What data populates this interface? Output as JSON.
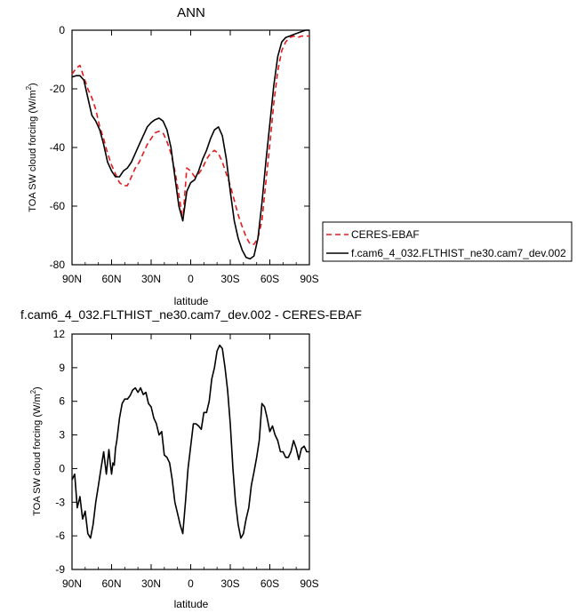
{
  "chart_data": [
    {
      "type": "line",
      "title": "ANN",
      "xlabel": "latitude",
      "ylabel": "TOA SW cloud forcing (W/m",
      "ylabel_sup": "2",
      "ylabel_close": ")",
      "xlim": [
        90,
        -90
      ],
      "ylim": [
        -80,
        0
      ],
      "xticks": [
        90,
        60,
        30,
        0,
        -30,
        -60,
        -90
      ],
      "xtick_labels": [
        "90N",
        "60N",
        "30N",
        "0",
        "30S",
        "60S",
        "90S"
      ],
      "yticks": [
        -80,
        -60,
        -40,
        -20,
        0
      ],
      "ytick_labels": [
        "-80",
        "-60",
        "-40",
        "-20",
        "0"
      ],
      "legend_position": "right",
      "series": [
        {
          "name": "CERES-EBAF",
          "color": "#e41a1c",
          "dash": "dashed",
          "x": [
            90,
            87,
            84,
            81,
            78,
            75,
            72,
            69,
            66,
            63,
            60,
            57,
            54,
            51,
            48,
            45,
            42,
            39,
            36,
            33,
            30,
            27,
            24,
            21,
            18,
            15,
            12,
            9,
            6,
            3,
            0,
            -3,
            -6,
            -9,
            -12,
            -15,
            -18,
            -21,
            -24,
            -27,
            -30,
            -33,
            -36,
            -39,
            -42,
            -45,
            -48,
            -51,
            -54,
            -57,
            -60,
            -63,
            -66,
            -69,
            -72,
            -75,
            -78,
            -81,
            -84,
            -87,
            -90
          ],
          "y": [
            -15,
            -13,
            -12,
            -16,
            -20,
            -23,
            -27,
            -33,
            -37,
            -42,
            -46,
            -49,
            -52,
            -53,
            -53,
            -50,
            -47,
            -45,
            -42,
            -39,
            -37,
            -35,
            -34.5,
            -35,
            -38,
            -42,
            -48,
            -56,
            -65,
            -47,
            -48,
            -50,
            -49,
            -47,
            -44,
            -42,
            -41,
            -42,
            -45,
            -49,
            -53,
            -58,
            -63,
            -67,
            -70.5,
            -73,
            -73,
            -71,
            -65,
            -52,
            -39,
            -25,
            -14,
            -7,
            -4,
            -2.5,
            -2,
            -2.5,
            -2,
            -2,
            -2
          ]
        },
        {
          "name": "f.cam6_4_032.FLTHIST_ne30.cam7_dev.002",
          "color": "#000000",
          "dash": "solid",
          "x": [
            90,
            87,
            84,
            81,
            78,
            75,
            72,
            69,
            66,
            63,
            60,
            57,
            54,
            51,
            48,
            45,
            42,
            39,
            36,
            33,
            30,
            27,
            24,
            21,
            18,
            15,
            12,
            9,
            6,
            3,
            0,
            -3,
            -6,
            -9,
            -12,
            -15,
            -18,
            -21,
            -24,
            -27,
            -30,
            -33,
            -36,
            -39,
            -42,
            -45,
            -48,
            -51,
            -54,
            -57,
            -60,
            -63,
            -66,
            -69,
            -72,
            -75,
            -78,
            -81,
            -84,
            -87,
            -90
          ],
          "y": [
            -16,
            -15.5,
            -15.5,
            -17,
            -23,
            -29,
            -31,
            -34,
            -39,
            -45,
            -48,
            -50,
            -50,
            -48,
            -47,
            -45,
            -42,
            -39,
            -36,
            -33,
            -31.5,
            -30.5,
            -30,
            -31,
            -34,
            -40,
            -50,
            -60,
            -65,
            -55,
            -52,
            -51,
            -48,
            -44,
            -41,
            -37,
            -34,
            -33,
            -36,
            -44,
            -55,
            -65,
            -71,
            -75,
            -77.5,
            -78,
            -77,
            -71,
            -59,
            -45,
            -32,
            -19,
            -9,
            -4,
            -2.5,
            -2,
            -1.5,
            -1,
            -0.5,
            0,
            0
          ]
        }
      ]
    },
    {
      "type": "line",
      "title": "f.cam6_4_032.FLTHIST_ne30.cam7_dev.002 - CERES-EBAF",
      "xlabel": "latitude",
      "ylabel": "TOA SW cloud forcing (W/m",
      "ylabel_sup": "2",
      "ylabel_close": ")",
      "xlim": [
        90,
        -90
      ],
      "ylim": [
        -9,
        12
      ],
      "xticks": [
        90,
        60,
        30,
        0,
        -30,
        -60,
        -90
      ],
      "xtick_labels": [
        "90N",
        "60N",
        "30N",
        "0",
        "30S",
        "60S",
        "90S"
      ],
      "yticks": [
        -9,
        -6,
        -3,
        0,
        3,
        6,
        9,
        12
      ],
      "ytick_labels": [
        "-9",
        "-6",
        "-3",
        "0",
        "3",
        "6",
        "9",
        "12"
      ],
      "series": [
        {
          "color": "#000000",
          "dash": "solid",
          "x": [
            90,
            88,
            86,
            84,
            82,
            80,
            78,
            76,
            74,
            72,
            70,
            68,
            66,
            64,
            62,
            61,
            60,
            59,
            58,
            57,
            56,
            54,
            52,
            50,
            48,
            46,
            44,
            42,
            40,
            38,
            36,
            34,
            32,
            30,
            28,
            26,
            24,
            22,
            20,
            18,
            16,
            14,
            12,
            10,
            8,
            6,
            4,
            2,
            0,
            -2,
            -4,
            -6,
            -8,
            -10,
            -12,
            -14,
            -16,
            -18,
            -20,
            -22,
            -24,
            -26,
            -28,
            -30,
            -32,
            -34,
            -36,
            -38,
            -40,
            -42,
            -44,
            -46,
            -48,
            -50,
            -52,
            -54,
            -56,
            -58,
            -60,
            -62,
            -64,
            -66,
            -68,
            -70,
            -72,
            -74,
            -76,
            -78,
            -80,
            -82,
            -84,
            -86,
            -88,
            -90
          ],
          "y": [
            -1,
            -0.5,
            -3.5,
            -2.5,
            -4.5,
            -3.8,
            -5.8,
            -6.2,
            -5,
            -3,
            -1.5,
            0,
            1.5,
            -0.5,
            1.7,
            0.5,
            -0.5,
            0.5,
            0.3,
            1.8,
            2.5,
            4.5,
            5.8,
            6.2,
            6.2,
            6.5,
            7,
            7.2,
            6.8,
            7.2,
            6.6,
            6.8,
            5.8,
            5.5,
            4.5,
            4,
            3,
            3.3,
            1.2,
            1,
            0.5,
            -1,
            -3,
            -4,
            -5,
            -5.8,
            -3,
            0,
            2,
            4,
            4,
            3.8,
            3.5,
            5,
            5,
            6,
            8,
            9,
            10.5,
            11,
            10.7,
            9,
            7,
            4,
            0,
            -3,
            -5,
            -6.2,
            -5.8,
            -4.5,
            -3.5,
            -1.5,
            -0.3,
            1,
            2.5,
            5.8,
            5.5,
            4.5,
            3.3,
            3.8,
            3,
            2.5,
            1.5,
            1.5,
            1,
            1,
            1.5,
            2.5,
            1.8,
            0.8,
            1.8,
            2,
            1.5,
            1.5
          ]
        }
      ]
    }
  ]
}
